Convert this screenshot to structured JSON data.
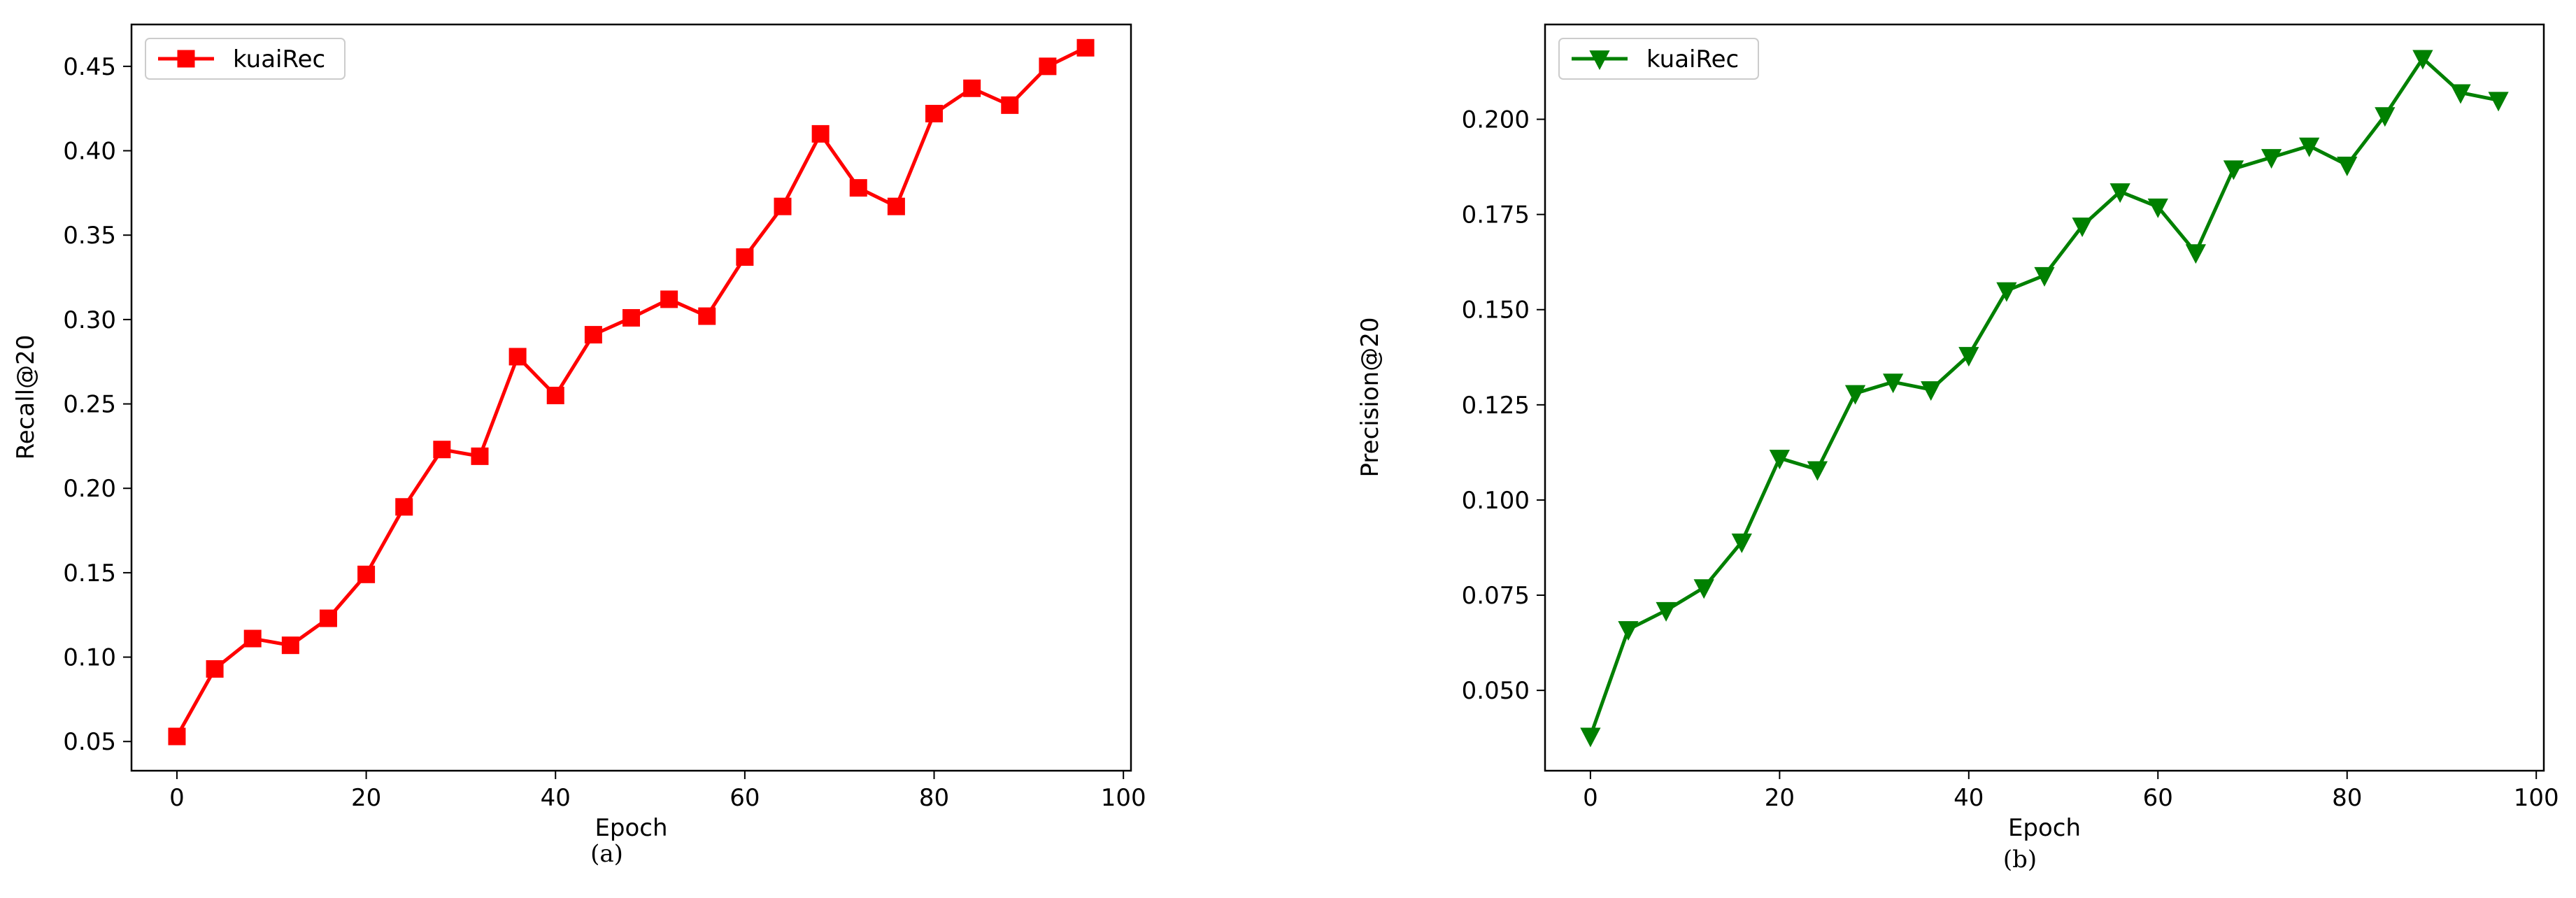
{
  "chart_data": [
    {
      "type": "line",
      "xlabel": "Epoch",
      "ylabel": "Recall@20",
      "caption": "(a)",
      "xlim": [
        -4.8,
        100.8
      ],
      "ylim": [
        0.0327,
        0.4748
      ],
      "xticks": [
        0,
        20,
        40,
        60,
        80,
        100
      ],
      "yticks": [
        0.05,
        0.1,
        0.15,
        0.2,
        0.25,
        0.3,
        0.35,
        0.4,
        0.45
      ],
      "grid": false,
      "legend_position": "upper left",
      "series": [
        {
          "name": "kuaiRec",
          "color": "#ff0000",
          "marker": "square",
          "x": [
            0,
            4,
            8,
            12,
            16,
            20,
            24,
            28,
            32,
            36,
            40,
            44,
            48,
            52,
            56,
            60,
            64,
            68,
            72,
            76,
            80,
            84,
            88,
            92,
            96
          ],
          "y": [
            0.053,
            0.093,
            0.111,
            0.107,
            0.123,
            0.149,
            0.189,
            0.223,
            0.219,
            0.278,
            0.255,
            0.291,
            0.301,
            0.312,
            0.302,
            0.337,
            0.367,
            0.41,
            0.378,
            0.367,
            0.422,
            0.437,
            0.427,
            0.45,
            0.461
          ]
        }
      ]
    },
    {
      "type": "line",
      "xlabel": "Epoch",
      "ylabel": "Precision@20",
      "caption": "(b)",
      "xlim": [
        -4.8,
        100.8
      ],
      "ylim": [
        0.0289,
        0.2249
      ],
      "xticks": [
        0,
        20,
        40,
        60,
        80,
        100
      ],
      "yticks": [
        0.05,
        0.075,
        0.1,
        0.125,
        0.15,
        0.175,
        0.2
      ],
      "grid": false,
      "legend_position": "upper left",
      "series": [
        {
          "name": "kuaiRec",
          "color": "#008000",
          "marker": "triangle-down",
          "x": [
            0,
            4,
            8,
            12,
            16,
            20,
            24,
            28,
            32,
            36,
            40,
            44,
            48,
            52,
            56,
            60,
            64,
            68,
            72,
            76,
            80,
            84,
            88,
            92,
            96
          ],
          "y": [
            0.038,
            0.066,
            0.071,
            0.077,
            0.089,
            0.111,
            0.108,
            0.128,
            0.131,
            0.129,
            0.138,
            0.155,
            0.159,
            0.172,
            0.181,
            0.177,
            0.165,
            0.187,
            0.19,
            0.193,
            0.188,
            0.201,
            0.216,
            0.207,
            0.205
          ]
        }
      ]
    }
  ]
}
